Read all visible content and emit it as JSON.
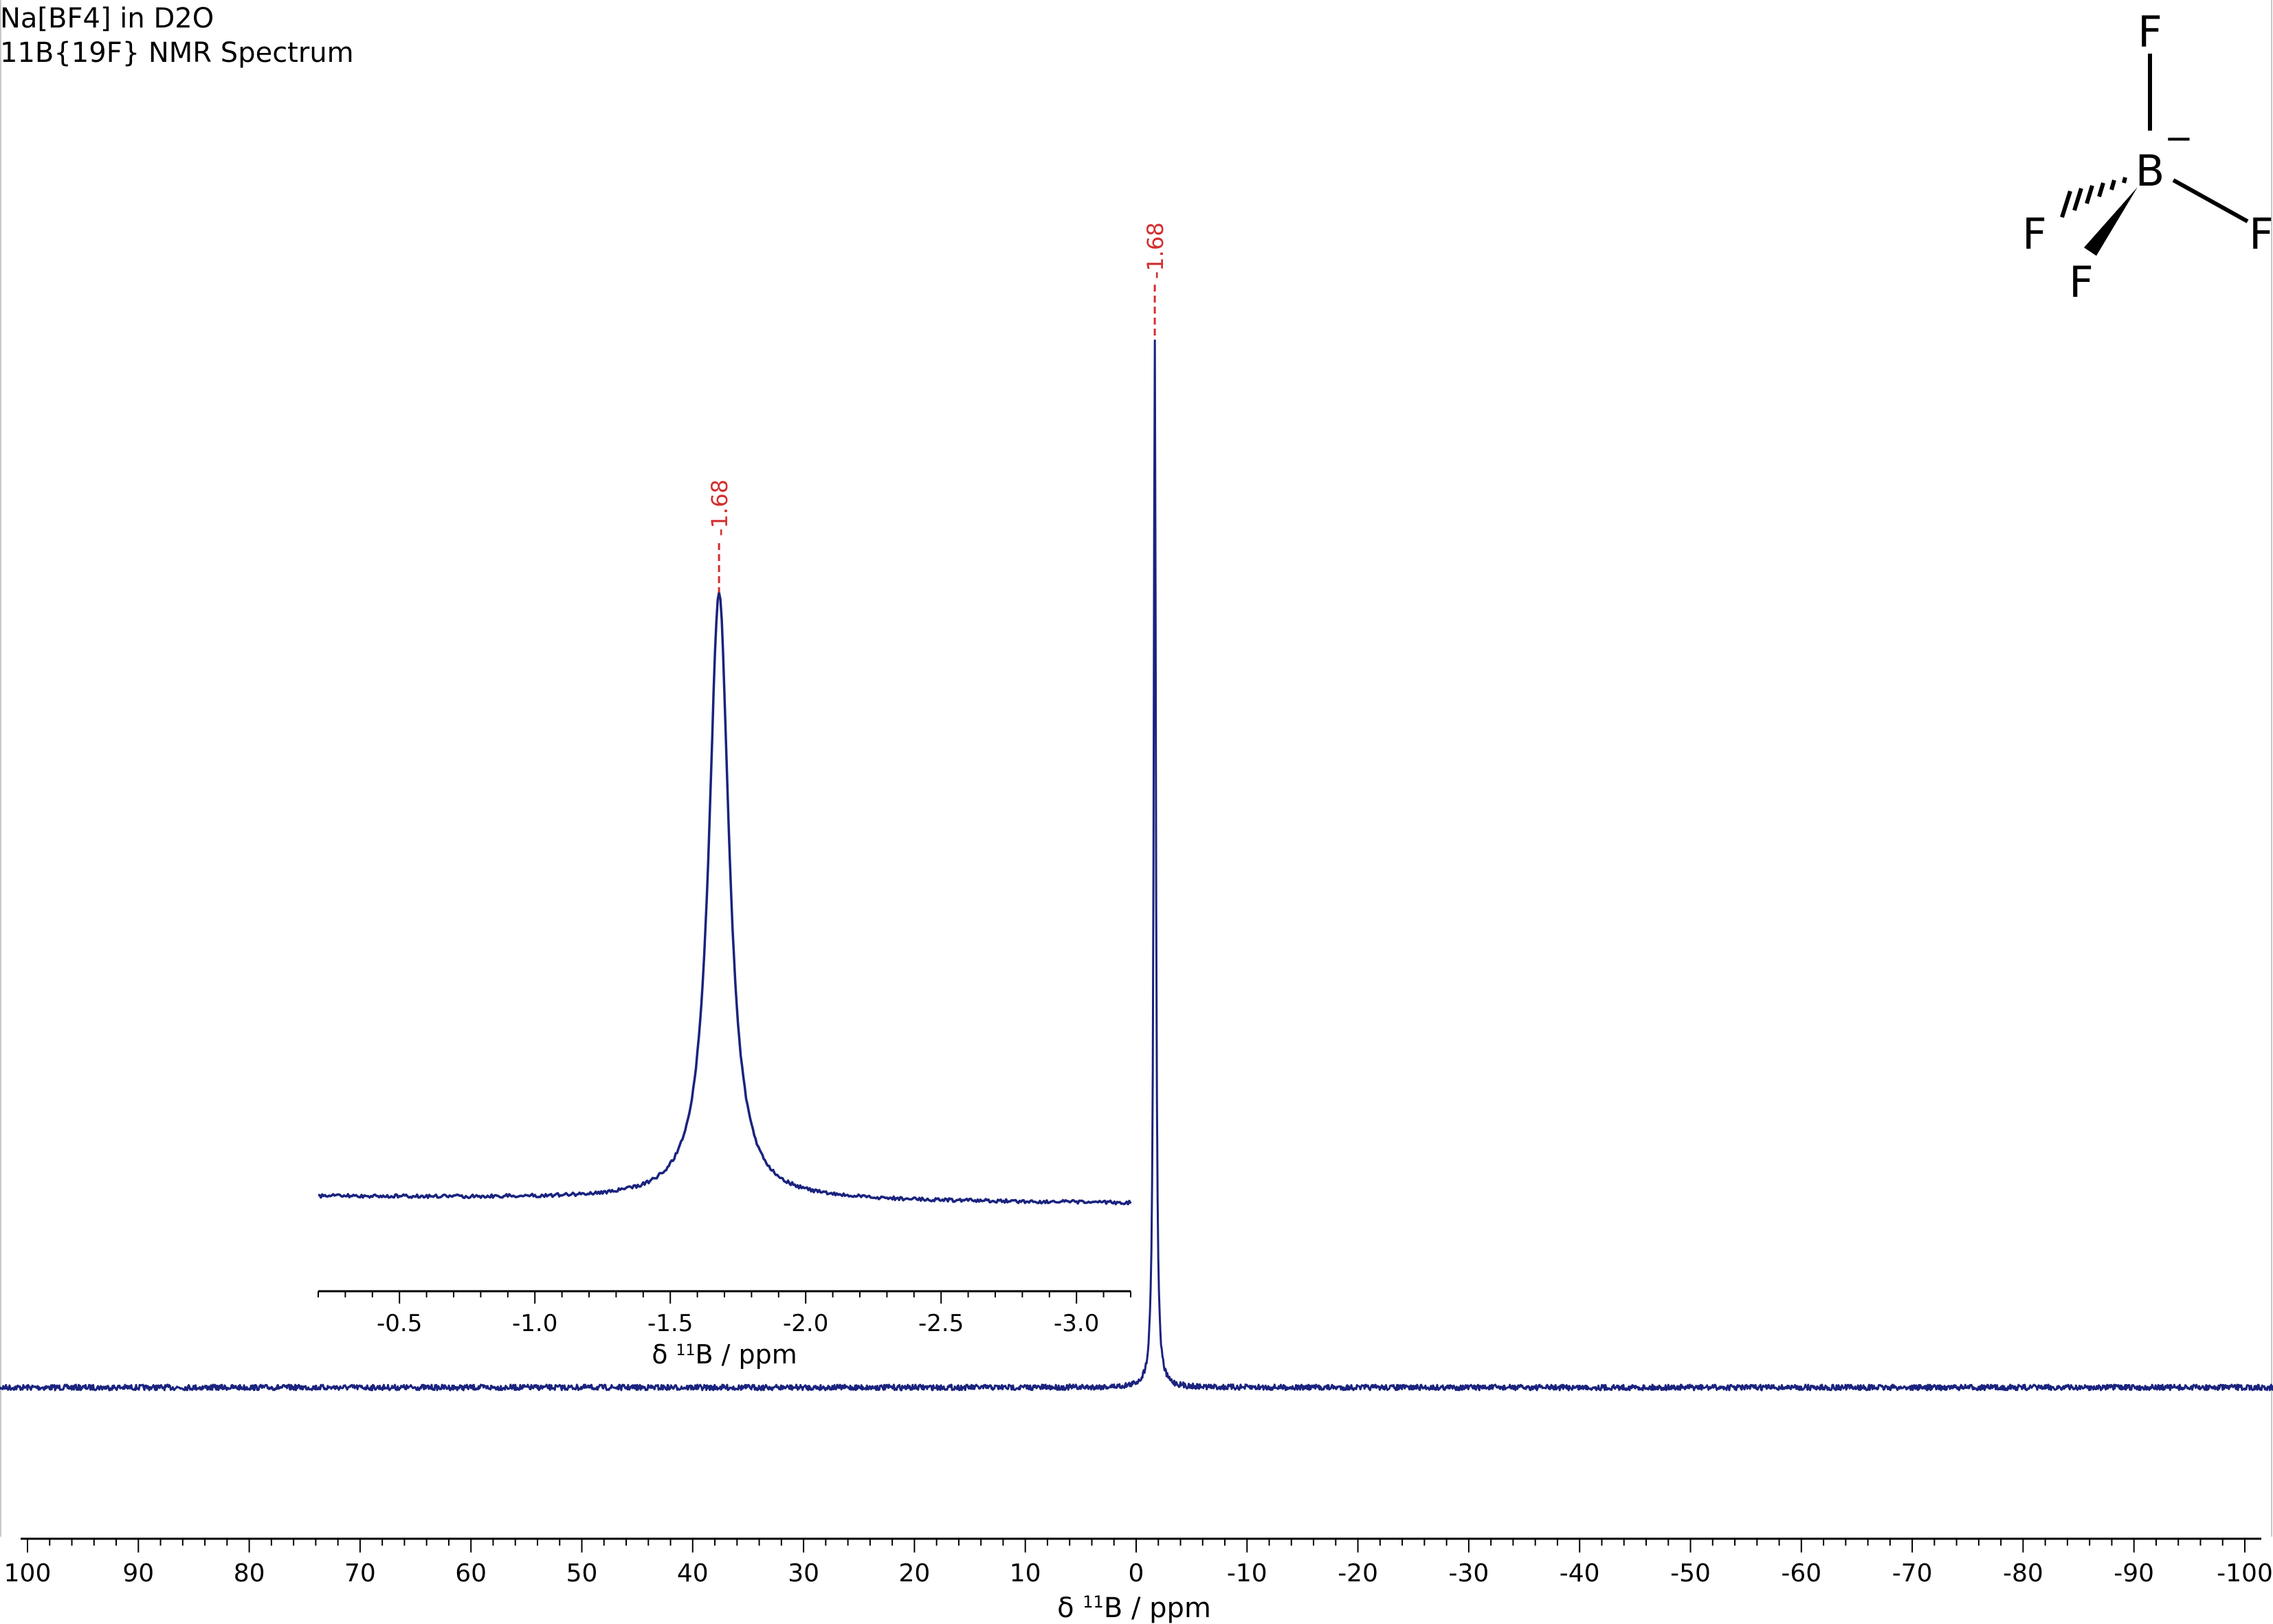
{
  "header": {
    "title": "Na[BF4] in D2O",
    "subtitle": "11B{19F} NMR Spectrum"
  },
  "structure": {
    "center_atom": "B",
    "charge": "−",
    "substituents": [
      "F",
      "F",
      "F",
      "F"
    ]
  },
  "colors": {
    "spectrum": "#1a237e",
    "peak_label": "#d32f2f",
    "axis": "#000000"
  },
  "chart_data": [
    {
      "type": "line",
      "name": "main-spectrum",
      "xlabel_prefix": "δ ",
      "xlabel_sup": "11",
      "xlabel_suffix": "B / ppm",
      "xlim": [
        100,
        -100
      ],
      "x_ticks": [
        100,
        90,
        80,
        70,
        60,
        50,
        40,
        30,
        20,
        10,
        0,
        -10,
        -20,
        -30,
        -40,
        -50,
        -60,
        -70,
        -80,
        -90,
        -100
      ],
      "x_tick_labels": [
        "100",
        "90",
        "80",
        "70",
        "60",
        "50",
        "40",
        "30",
        "20",
        "10",
        "0",
        "-10",
        "-20",
        "-30",
        "-40",
        "-50",
        "-60",
        "-70",
        "-80",
        "-90",
        "-100"
      ],
      "minor_tick_step": 2,
      "peaks": [
        {
          "x": -1.68,
          "label": "-1.68",
          "relative_height": 1.0
        }
      ]
    },
    {
      "type": "line",
      "name": "inset-spectrum",
      "xlabel_prefix": "δ ",
      "xlabel_sup": "11",
      "xlabel_suffix": "B / ppm",
      "xlim": [
        -0.2,
        -3.2
      ],
      "x_ticks": [
        -0.5,
        -1.0,
        -1.5,
        -2.0,
        -2.5,
        -3.0
      ],
      "x_tick_labels": [
        "-0.5",
        "-1.0",
        "-1.5",
        "-2.0",
        "-2.5",
        "-3.0"
      ],
      "minor_tick_step": 0.1,
      "peaks": [
        {
          "x": -1.68,
          "label": "-1.68",
          "relative_height": 1.0
        }
      ]
    }
  ]
}
